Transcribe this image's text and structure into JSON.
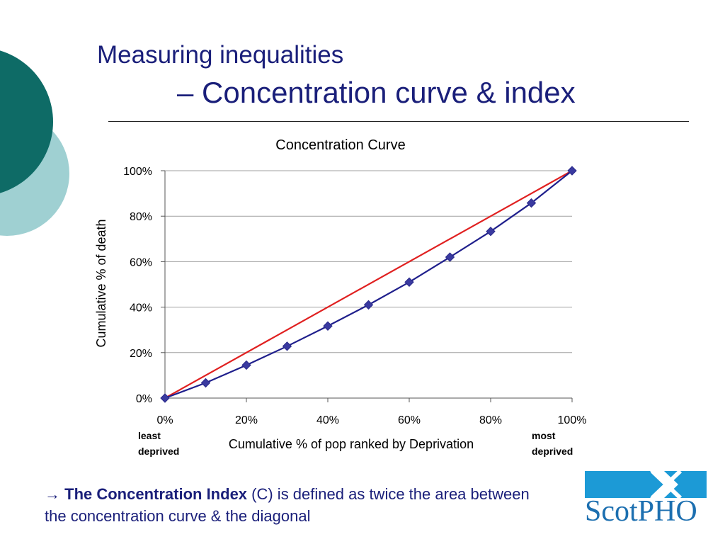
{
  "slide": {
    "title_line1": "Measuring inequalities",
    "title_line2": "– Concentration curve & index",
    "footer_arrow": "→",
    "footer_bold": "The Concentration Index",
    "footer_rest": " (C) is defined as twice the area between the concentration curve & the diagonal",
    "logo_text_scot": "Scot",
    "logo_text_pho": "PHO",
    "colors": {
      "title": "#1a1f7a",
      "deco_dark": "#0e6b66",
      "deco_light": "#9fd0d2",
      "logo": "#1c9ad6"
    }
  },
  "chart_data": {
    "type": "line",
    "title": "Concentration Curve",
    "xlabel": "Cumulative % of pop ranked by Deprivation",
    "ylabel": "Cumulative % of death",
    "x_tick_labels": [
      "0%",
      "20%",
      "40%",
      "60%",
      "80%",
      "100%"
    ],
    "y_tick_labels": [
      "0%",
      "20%",
      "40%",
      "60%",
      "80%",
      "100%"
    ],
    "xlim": [
      0,
      100
    ],
    "ylim": [
      0,
      100
    ],
    "grid": "horizontal",
    "x_end_labels": {
      "left_line1": "least",
      "left_line2": "deprived",
      "right_line1": "most",
      "right_line2": "deprived"
    },
    "series": [
      {
        "color": "#1f1f8c",
        "marker": "diamond",
        "x": [
          0,
          10,
          20,
          30,
          40,
          50,
          60,
          70,
          80,
          90,
          100
        ],
        "y": [
          0,
          6.7,
          14.5,
          22.8,
          31.7,
          41,
          51,
          62,
          73.3,
          85.8,
          100
        ]
      },
      {
        "color": "#e02020",
        "x": [
          0,
          100
        ],
        "y": [
          0,
          100
        ]
      }
    ]
  }
}
